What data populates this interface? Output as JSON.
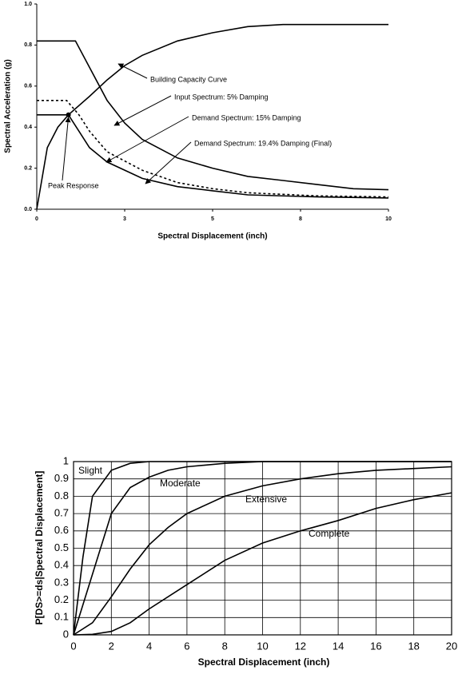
{
  "chart_data": [
    {
      "type": "line",
      "x_label": "Spectral Displacement (inch)",
      "y_label": "Spectral Acceleration (g)",
      "xlim": [
        0,
        10
      ],
      "xticks": [
        0,
        {
          "value": 2.5,
          "label": "3"
        },
        5,
        {
          "value": 7.5,
          "label": "8"
        },
        10
      ],
      "ylim": [
        0,
        1
      ],
      "yticks": [
        {
          "value": 0,
          "label": "0.0"
        },
        0.2,
        0.4,
        0.6,
        0.8,
        {
          "value": 1,
          "label": "1.0"
        }
      ],
      "grid": false,
      "series": [
        {
          "name": "Building Capacity Curve",
          "color": "#000000",
          "dash": false,
          "x": [
            0,
            0.3,
            0.6,
            0.9,
            1.5,
            2,
            2.5,
            3,
            4,
            5,
            6,
            7,
            8,
            10
          ],
          "values": [
            0,
            0.3,
            0.4,
            0.46,
            0.55,
            0.63,
            0.7,
            0.75,
            0.82,
            0.86,
            0.89,
            0.9,
            0.9,
            0.9
          ]
        },
        {
          "name": "Input Spectrum: 5% Damping",
          "color": "#000000",
          "dash": false,
          "x": [
            0,
            1.1,
            2,
            2.5,
            3,
            4,
            5,
            6,
            7,
            8,
            9,
            10
          ],
          "values": [
            0.82,
            0.82,
            0.53,
            0.42,
            0.34,
            0.25,
            0.2,
            0.16,
            0.14,
            0.12,
            0.1,
            0.095
          ]
        },
        {
          "name": "Demand Spectrum: 15% Damping",
          "color": "#000000",
          "dash": true,
          "x": [
            0,
            0.85,
            1.2,
            1.5,
            2,
            3,
            4,
            5,
            6,
            8,
            10
          ],
          "values": [
            0.53,
            0.53,
            0.46,
            0.38,
            0.28,
            0.19,
            0.13,
            0.1,
            0.08,
            0.065,
            0.06
          ]
        },
        {
          "name": "Demand Spectrum: 19.4% Damping (Final)",
          "color": "#000000",
          "dash": false,
          "x": [
            0,
            0.9,
            1.2,
            1.5,
            2,
            3,
            4,
            5,
            6,
            8,
            10
          ],
          "values": [
            0.46,
            0.46,
            0.38,
            0.3,
            0.23,
            0.15,
            0.11,
            0.09,
            0.07,
            0.06,
            0.055
          ]
        }
      ],
      "annotations": [
        {
          "text": "Peak Response",
          "x": 0.9,
          "y": 0.46
        }
      ]
    },
    {
      "type": "line",
      "x_label": "Spectral Displacement (inch)",
      "y_label": "P[DS>=ds|Spectral Displacement]",
      "xlim": [
        0,
        20
      ],
      "xticks": [
        0,
        2,
        4,
        6,
        8,
        10,
        12,
        14,
        16,
        18,
        20
      ],
      "ylim": [
        0,
        1
      ],
      "yticks": [
        0,
        0.1,
        0.2,
        0.3,
        0.4,
        0.5,
        0.6,
        0.7,
        0.8,
        0.9,
        1
      ],
      "grid": true,
      "series": [
        {
          "name": "Slight",
          "color": "#000000",
          "dash": false,
          "x": [
            0,
            0.5,
            1,
            2,
            3,
            4,
            20
          ],
          "values": [
            0,
            0.45,
            0.8,
            0.95,
            0.99,
            1,
            1
          ]
        },
        {
          "name": "Moderate",
          "color": "#000000",
          "dash": false,
          "x": [
            0,
            1,
            2,
            3,
            4,
            5,
            6,
            8,
            10,
            20
          ],
          "values": [
            0,
            0.35,
            0.7,
            0.85,
            0.91,
            0.95,
            0.97,
            0.99,
            1,
            1
          ]
        },
        {
          "name": "Extensive",
          "color": "#000000",
          "dash": false,
          "x": [
            0,
            1,
            2,
            3,
            4,
            5,
            6,
            8,
            10,
            12,
            14,
            16,
            18,
            20
          ],
          "values": [
            0,
            0.07,
            0.22,
            0.38,
            0.52,
            0.62,
            0.7,
            0.8,
            0.86,
            0.9,
            0.93,
            0.95,
            0.96,
            0.97
          ]
        },
        {
          "name": "Complete",
          "color": "#000000",
          "dash": false,
          "x": [
            0,
            1,
            2,
            3,
            4,
            6,
            8,
            10,
            12,
            14,
            16,
            18,
            20
          ],
          "values": [
            0,
            0.003,
            0.02,
            0.07,
            0.15,
            0.29,
            0.43,
            0.53,
            0.6,
            0.66,
            0.73,
            0.78,
            0.82
          ]
        }
      ]
    }
  ]
}
